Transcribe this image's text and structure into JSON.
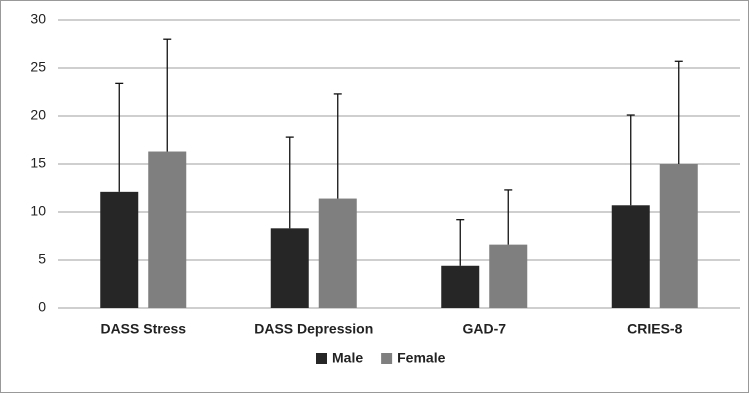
{
  "chart_data": {
    "type": "bar",
    "categories": [
      "DASS Stress",
      "DASS Depression",
      "GAD-7",
      "CRIES-8"
    ],
    "series": [
      {
        "name": "Male",
        "color": "#262626",
        "values": [
          12.1,
          8.3,
          4.4,
          10.7
        ],
        "errors": [
          11.3,
          9.5,
          4.8,
          9.4
        ]
      },
      {
        "name": "Female",
        "color": "#7f7f7f",
        "values": [
          16.3,
          11.4,
          6.6,
          15.0
        ],
        "errors": [
          11.7,
          10.9,
          5.7,
          10.7
        ]
      }
    ],
    "ylim": [
      0,
      30
    ],
    "yticks": [
      0,
      5,
      10,
      15,
      20,
      25,
      30
    ],
    "grid": true,
    "legend": "bottom"
  }
}
